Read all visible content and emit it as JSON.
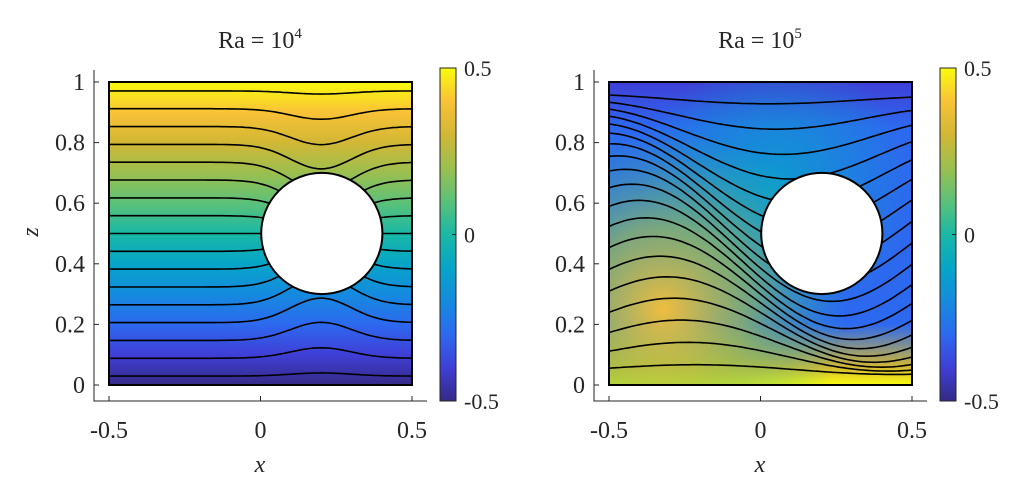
{
  "chart_data": [
    {
      "type": "heatmap",
      "panel": "left",
      "title": "Ra = 10^4",
      "title_base": "Ra = 10",
      "title_exponent": "4",
      "xlabel": "x",
      "ylabel": "z",
      "xlim": [
        -0.5,
        0.5
      ],
      "ylim": [
        0,
        1
      ],
      "xticks": [
        "-0.5",
        "0",
        "0.5"
      ],
      "yticks": [
        "0",
        "0.2",
        "0.4",
        "0.6",
        "0.8",
        "1"
      ],
      "xtick_values": [
        -0.5,
        0,
        0.5
      ],
      "ytick_values": [
        0,
        0.2,
        0.4,
        0.6,
        0.8,
        1
      ],
      "obstacle": {
        "shape": "circle",
        "center": [
          0.2,
          0.5
        ],
        "radius": 0.2
      },
      "field": "temperature",
      "contour_count": 17,
      "colorbar": {
        "range": [
          -0.5,
          0.5
        ],
        "ticks": [
          "0.5",
          "0",
          "-0.5"
        ],
        "tick_values": [
          0.5,
          0,
          -0.5
        ],
        "colormap": "parula"
      }
    },
    {
      "type": "heatmap",
      "panel": "right",
      "title": "Ra = 10^5",
      "title_base": "Ra = 10",
      "title_exponent": "5",
      "xlabel": "x",
      "ylabel": "",
      "xlim": [
        -0.5,
        0.5
      ],
      "ylim": [
        0,
        1
      ],
      "xticks": [
        "-0.5",
        "0",
        "0.5"
      ],
      "yticks": [
        "0",
        "0.2",
        "0.4",
        "0.6",
        "0.8",
        "1"
      ],
      "xtick_values": [
        -0.5,
        0,
        0.5
      ],
      "ytick_values": [
        0,
        0.2,
        0.4,
        0.6,
        0.8,
        1
      ],
      "obstacle": {
        "shape": "circle",
        "center": [
          0.2,
          0.5
        ],
        "radius": 0.2
      },
      "field": "temperature",
      "contour_count": 19,
      "colorbar": {
        "range": [
          -0.5,
          0.5
        ],
        "ticks": [
          "0.5",
          "0",
          "-0.5"
        ],
        "tick_values": [
          0.5,
          0,
          -0.5
        ],
        "colormap": "parula"
      }
    }
  ],
  "colors": {
    "parula": [
      "#352a87",
      "#3f3fd6",
      "#2d69ef",
      "#148bde",
      "#06a5c8",
      "#1ab8a5",
      "#5bc179",
      "#9bbf4f",
      "#d2b735",
      "#f9c236",
      "#f9fb0e"
    ],
    "contour": "#000000",
    "axis": "#262626"
  }
}
